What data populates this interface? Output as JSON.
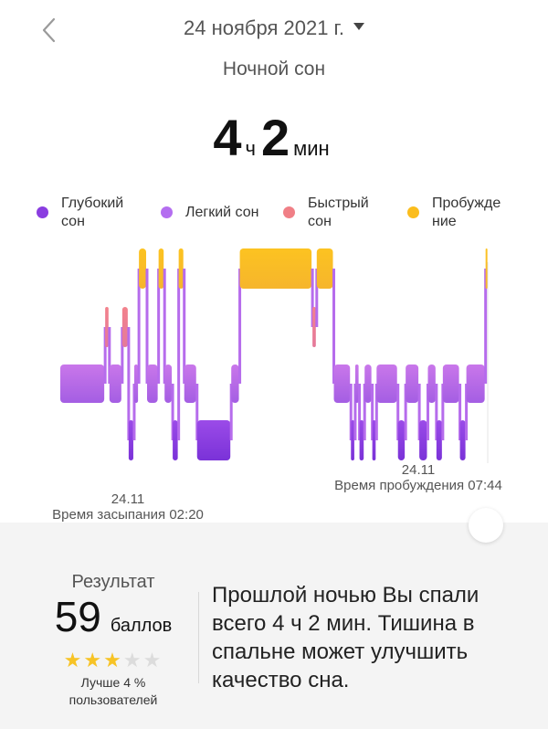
{
  "header": {
    "date": "24 ноября 2021 г.",
    "subtitle": "Ночной сон"
  },
  "duration": {
    "hours": "4",
    "hours_unit": "ч",
    "minutes": "2",
    "minutes_unit": "мин"
  },
  "legend": [
    {
      "label": "Глубокий\nсон",
      "color": "#8a3de0"
    },
    {
      "label": "Легкий сон",
      "color": "#b46ef0"
    },
    {
      "label": "Быстрый\nсон",
      "color": "#f07f86"
    },
    {
      "label": "Пробужде\nние",
      "color": "#fbbd1d"
    }
  ],
  "chart_data": {
    "type": "area",
    "stages": [
      "Пробуждение",
      "Быстрый сон",
      "Легкий сон",
      "Глубокий сон"
    ],
    "segments": [
      {
        "start": 0.0,
        "end": 0.105,
        "stage": "Легкий сон"
      },
      {
        "start": 0.105,
        "end": 0.115,
        "stage": "Быстрый сон"
      },
      {
        "start": 0.115,
        "end": 0.145,
        "stage": "Легкий сон"
      },
      {
        "start": 0.145,
        "end": 0.16,
        "stage": "Быстрый сон"
      },
      {
        "start": 0.16,
        "end": 0.173,
        "stage": "Глубокий сон"
      },
      {
        "start": 0.173,
        "end": 0.184,
        "stage": "Легкий сон"
      },
      {
        "start": 0.184,
        "end": 0.203,
        "stage": "Пробуждение"
      },
      {
        "start": 0.203,
        "end": 0.23,
        "stage": "Легкий сон"
      },
      {
        "start": 0.23,
        "end": 0.244,
        "stage": "Пробуждение"
      },
      {
        "start": 0.244,
        "end": 0.263,
        "stage": "Легкий сон"
      },
      {
        "start": 0.263,
        "end": 0.277,
        "stage": "Глубокий сон"
      },
      {
        "start": 0.277,
        "end": 0.29,
        "stage": "Пробуждение"
      },
      {
        "start": 0.29,
        "end": 0.32,
        "stage": "Легкий сон"
      },
      {
        "start": 0.32,
        "end": 0.4,
        "stage": "Глубокий сон"
      },
      {
        "start": 0.4,
        "end": 0.42,
        "stage": "Легкий сон"
      },
      {
        "start": 0.42,
        "end": 0.59,
        "stage": "Пробуждение"
      },
      {
        "start": 0.59,
        "end": 0.6,
        "stage": "Быстрый сон"
      },
      {
        "start": 0.6,
        "end": 0.64,
        "stage": "Пробуждение"
      },
      {
        "start": 0.64,
        "end": 0.68,
        "stage": "Легкий сон"
      },
      {
        "start": 0.68,
        "end": 0.69,
        "stage": "Глубокий сон"
      },
      {
        "start": 0.69,
        "end": 0.7,
        "stage": "Легкий сон"
      },
      {
        "start": 0.7,
        "end": 0.712,
        "stage": "Глубокий сон"
      },
      {
        "start": 0.712,
        "end": 0.73,
        "stage": "Легкий сон"
      },
      {
        "start": 0.73,
        "end": 0.74,
        "stage": "Глубокий сон"
      },
      {
        "start": 0.74,
        "end": 0.79,
        "stage": "Легкий сон"
      },
      {
        "start": 0.79,
        "end": 0.808,
        "stage": "Глубокий сон"
      },
      {
        "start": 0.808,
        "end": 0.84,
        "stage": "Легкий сон"
      },
      {
        "start": 0.84,
        "end": 0.86,
        "stage": "Глубокий сон"
      },
      {
        "start": 0.86,
        "end": 0.88,
        "stage": "Легкий сон"
      },
      {
        "start": 0.88,
        "end": 0.895,
        "stage": "Глубокий сон"
      },
      {
        "start": 0.895,
        "end": 0.935,
        "stage": "Легкий сон"
      },
      {
        "start": 0.935,
        "end": 0.95,
        "stage": "Глубокий сон"
      },
      {
        "start": 0.95,
        "end": 0.995,
        "stage": "Легкий сон"
      },
      {
        "start": 0.995,
        "end": 1.0,
        "stage": "Пробуждение"
      }
    ],
    "sleep_start": {
      "date": "24.11",
      "label": "Время засыпания 02:20"
    },
    "wake": {
      "date": "24.11",
      "label": "Время пробуждения 07:44"
    }
  },
  "result": {
    "title": "Результат",
    "score": "59",
    "score_unit": "баллов",
    "stars_filled": 3,
    "stars_total": 5,
    "better": "Лучше 4 %\nпользователей",
    "message": "Прошлой ночью Вы спали всего 4 ч 2 мин. Тишина в спальне может улучшить качество сна."
  }
}
